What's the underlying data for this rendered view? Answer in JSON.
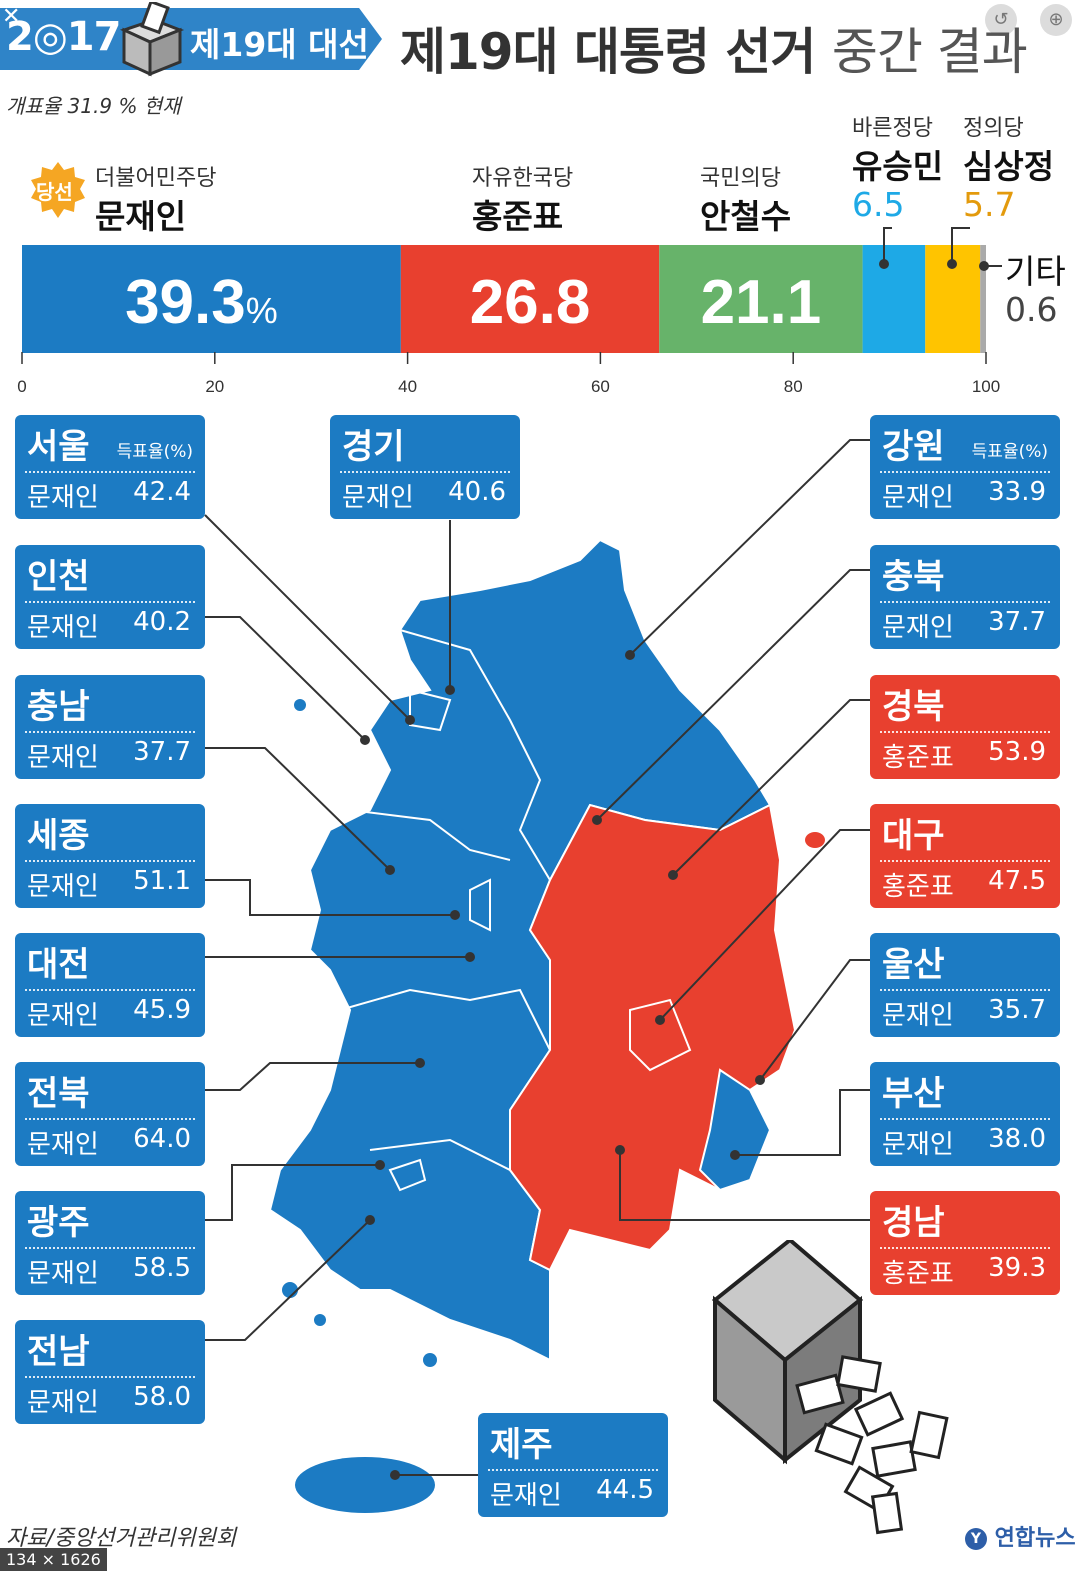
{
  "header": {
    "year": "2◎17",
    "edition": "제19대 대선",
    "title_main": "제19대 대통령 선거",
    "title_sub": "중간 결과",
    "count_rate": "개표율 31.9 % 현재"
  },
  "elected_badge": "당선",
  "candidates": [
    {
      "party": "더불어민주당",
      "name": "문재인",
      "value_label": "39.3",
      "unit": "%"
    },
    {
      "party": "자유한국당",
      "name": "홍준표",
      "value_label": "26.8"
    },
    {
      "party": "국민의당",
      "name": "안철수",
      "value_label": "21.1"
    },
    {
      "party": "바른정당",
      "name": "유승민",
      "value_label": "6.5"
    },
    {
      "party": "정의당",
      "name": "심상정",
      "value_label": "5.7"
    },
    {
      "party": "",
      "name": "기타",
      "value_label": "0.6"
    }
  ],
  "colors": {
    "moon": "#1c7bc3",
    "hong": "#e8402f",
    "ahn": "#67b36a",
    "yoo": "#1ea9e6",
    "sim": "#ffc400",
    "other": "#aaaaaa",
    "sim_text": "#e39a0c",
    "yoo_text": "#1ea9e6"
  },
  "chart_data": {
    "type": "bar",
    "orientation": "horizontal-stacked",
    "title": "제19대 대통령 선거 중간 결과",
    "categories": [
      "문재인",
      "홍준표",
      "안철수",
      "유승민",
      "심상정",
      "기타"
    ],
    "values": [
      39.3,
      26.8,
      21.1,
      6.5,
      5.7,
      0.6
    ],
    "xlim": [
      0,
      100
    ],
    "xticks": [
      "0",
      "20",
      "40",
      "60",
      "80",
      "100"
    ],
    "legend": "labels above bar",
    "grid": false
  },
  "regions_header_unit": "득표율(%)",
  "regions": [
    {
      "name": "서울",
      "cand": "문재인",
      "value": "42.4",
      "color": "blue"
    },
    {
      "name": "인천",
      "cand": "문재인",
      "value": "40.2",
      "color": "blue"
    },
    {
      "name": "충남",
      "cand": "문재인",
      "value": "37.7",
      "color": "blue"
    },
    {
      "name": "세종",
      "cand": "문재인",
      "value": "51.1",
      "color": "blue"
    },
    {
      "name": "대전",
      "cand": "문재인",
      "value": "45.9",
      "color": "blue"
    },
    {
      "name": "전북",
      "cand": "문재인",
      "value": "64.0",
      "color": "blue"
    },
    {
      "name": "광주",
      "cand": "문재인",
      "value": "58.5",
      "color": "blue"
    },
    {
      "name": "전남",
      "cand": "문재인",
      "value": "58.0",
      "color": "blue"
    },
    {
      "name": "경기",
      "cand": "문재인",
      "value": "40.6",
      "color": "blue"
    },
    {
      "name": "제주",
      "cand": "문재인",
      "value": "44.5",
      "color": "blue"
    },
    {
      "name": "강원",
      "cand": "문재인",
      "value": "33.9",
      "color": "blue"
    },
    {
      "name": "충북",
      "cand": "문재인",
      "value": "37.7",
      "color": "blue"
    },
    {
      "name": "경북",
      "cand": "홍준표",
      "value": "53.9",
      "color": "red"
    },
    {
      "name": "대구",
      "cand": "홍준표",
      "value": "47.5",
      "color": "red"
    },
    {
      "name": "울산",
      "cand": "문재인",
      "value": "35.7",
      "color": "blue"
    },
    {
      "name": "부산",
      "cand": "문재인",
      "value": "38.0",
      "color": "blue"
    },
    {
      "name": "경남",
      "cand": "홍준표",
      "value": "39.3",
      "color": "red"
    }
  ],
  "footer": {
    "source": "자료/중앙선거관리위원회",
    "logo": "연합뉴스",
    "dims": "134 × 1626"
  },
  "top_icons": [
    "close-icon",
    "search-icon"
  ]
}
